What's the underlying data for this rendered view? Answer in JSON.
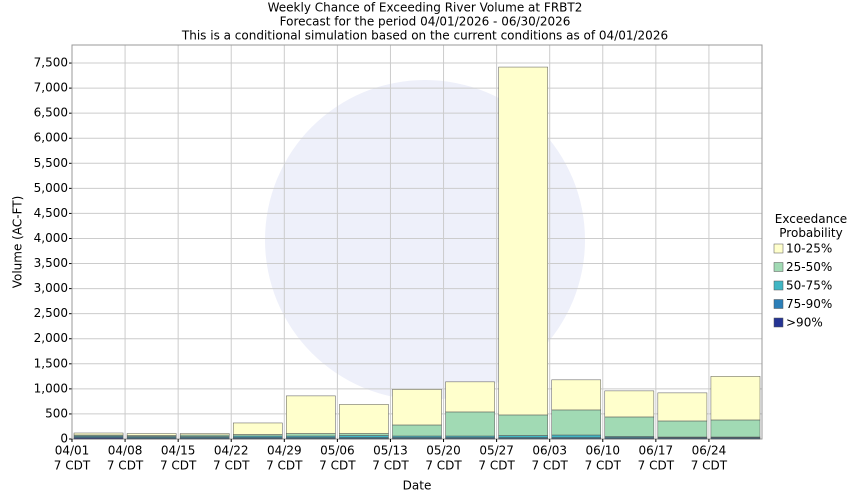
{
  "chart_data": {
    "type": "stacked_bar",
    "title": "Weekly Chance of Exceeding River Volume at FRBT2",
    "subtitle": "Forecast for the period 04/01/2026 - 06/30/2026",
    "note": "This is a conditional simulation based on the current conditions as of 04/01/2026",
    "x_label": "Date",
    "y_label": "Volume (AC-FT)",
    "x_sublabel": "7 CDT",
    "legend_title": "Exceedance Probability",
    "categories": [
      "04/01",
      "04/08",
      "04/15",
      "04/22",
      "04/29",
      "05/06",
      "05/13",
      "05/20",
      "05/27",
      "06/03",
      "06/10",
      "06/17",
      "06/24"
    ],
    "series": [
      {
        "name": ">90%",
        "color": "#253494",
        "values": [
          20,
          10,
          10,
          10,
          10,
          10,
          10,
          10,
          10,
          10,
          10,
          10,
          10
        ]
      },
      {
        "name": "75-90%",
        "color": "#2c7fb8",
        "values": [
          20,
          20,
          20,
          20,
          20,
          20,
          20,
          20,
          20,
          20,
          20,
          20,
          20
        ]
      },
      {
        "name": "50-75%",
        "color": "#41b6c4",
        "values": [
          20,
          20,
          20,
          30,
          30,
          40,
          30,
          30,
          40,
          50,
          20,
          10,
          10
        ]
      },
      {
        "name": "25-50%",
        "color": "#a1dab4",
        "values": [
          20,
          20,
          30,
          30,
          50,
          40,
          220,
          480,
          410,
          500,
          390,
          320,
          340
        ]
      },
      {
        "name": "10-25%",
        "color": "#ffffcc",
        "values": [
          40,
          40,
          30,
          230,
          750,
          580,
          710,
          600,
          6940,
          600,
          520,
          560,
          870
        ]
      }
    ],
    "ylim": [
      0,
      7860
    ],
    "yticks": [
      0,
      500,
      {
        "value": 1000,
        "label": "1,000"
      },
      {
        "value": 1500,
        "label": "1,500"
      },
      {
        "value": 2000,
        "label": "2,000"
      },
      {
        "value": 2500,
        "label": "2,500"
      },
      {
        "value": 3000,
        "label": "3,000"
      },
      {
        "value": 3500,
        "label": "3,500"
      },
      {
        "value": 4000,
        "label": "4,000"
      },
      {
        "value": 4500,
        "label": "4,500"
      },
      {
        "value": 5000,
        "label": "5,000"
      },
      {
        "value": 5500,
        "label": "5,500"
      },
      {
        "value": 6000,
        "label": "6,000"
      },
      {
        "value": 6500,
        "label": "6,500"
      },
      {
        "value": 7000,
        "label": "7,000"
      },
      {
        "value": 7500,
        "label": "7,500"
      }
    ],
    "grid": true
  }
}
